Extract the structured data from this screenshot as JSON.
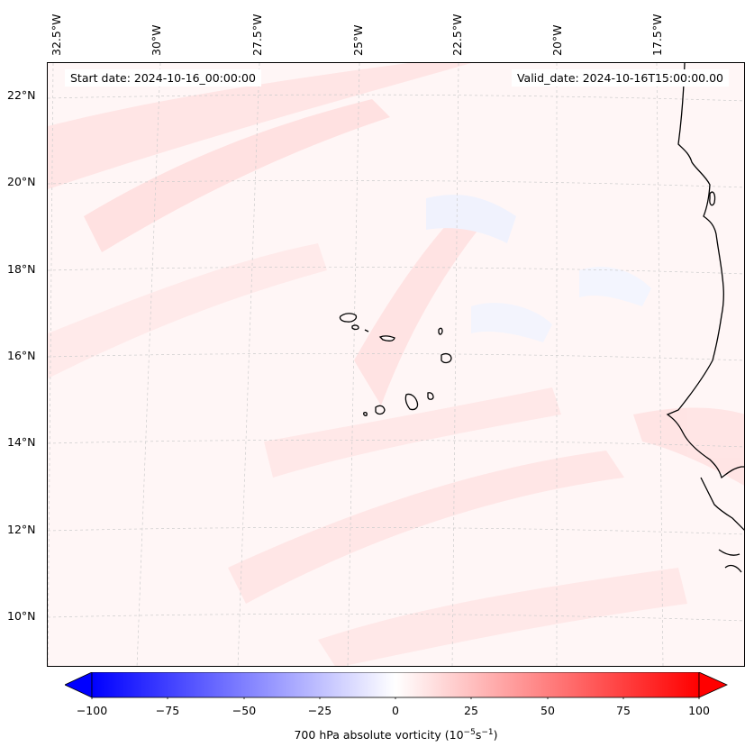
{
  "map": {
    "start_label": "Start date: 2024-10-16_00:00:00",
    "valid_label": "Valid_date: 2024-10-16T15:00:00.00",
    "lon_labels": [
      "32.5°W",
      "30°W",
      "27.5°W",
      "25°W",
      "22.5°W",
      "20°W",
      "17.5°W"
    ],
    "lat_labels": [
      "22°N",
      "20°N",
      "18°N",
      "16°N",
      "14°N",
      "12°N",
      "10°N"
    ],
    "coastline_color": "#000000",
    "gridline_color": "#cccccc",
    "field_base_color": "#fff6f6",
    "positive_anomaly_color": "#ffd5d5",
    "negative_anomaly_color": "#eef2ff"
  },
  "colorbar": {
    "ticks": [
      "−100",
      "−75",
      "−50",
      "−25",
      "0",
      "25",
      "50",
      "75",
      "100"
    ],
    "label_main": "700 hPa absolute vorticity (10",
    "label_exp1": "−5",
    "label_mid": "s",
    "label_exp2": "−1",
    "label_end": ")",
    "min_color": "#0000ff",
    "mid_color": "#ffffff",
    "max_color": "#ff0000"
  }
}
